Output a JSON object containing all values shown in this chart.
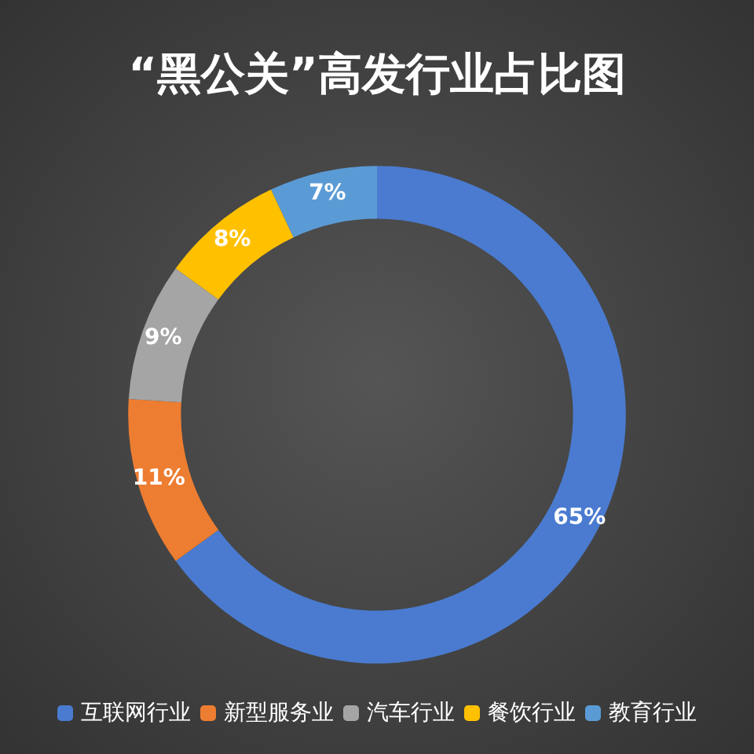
{
  "chart_data": {
    "type": "donut",
    "title": "“黑公关”高发行业占比图",
    "categories": [
      "互联网行业",
      "新型服务业",
      "汽车行业",
      "餐饮行业",
      "教育行业"
    ],
    "values": [
      65,
      11,
      9,
      8,
      7
    ],
    "value_labels": [
      "65%",
      "11%",
      "9%",
      "8%",
      "7%"
    ],
    "colors": [
      "#4a7bd0",
      "#ed7d31",
      "#a5a5a5",
      "#ffc000",
      "#5b9bd5"
    ],
    "legend": "bottom"
  }
}
